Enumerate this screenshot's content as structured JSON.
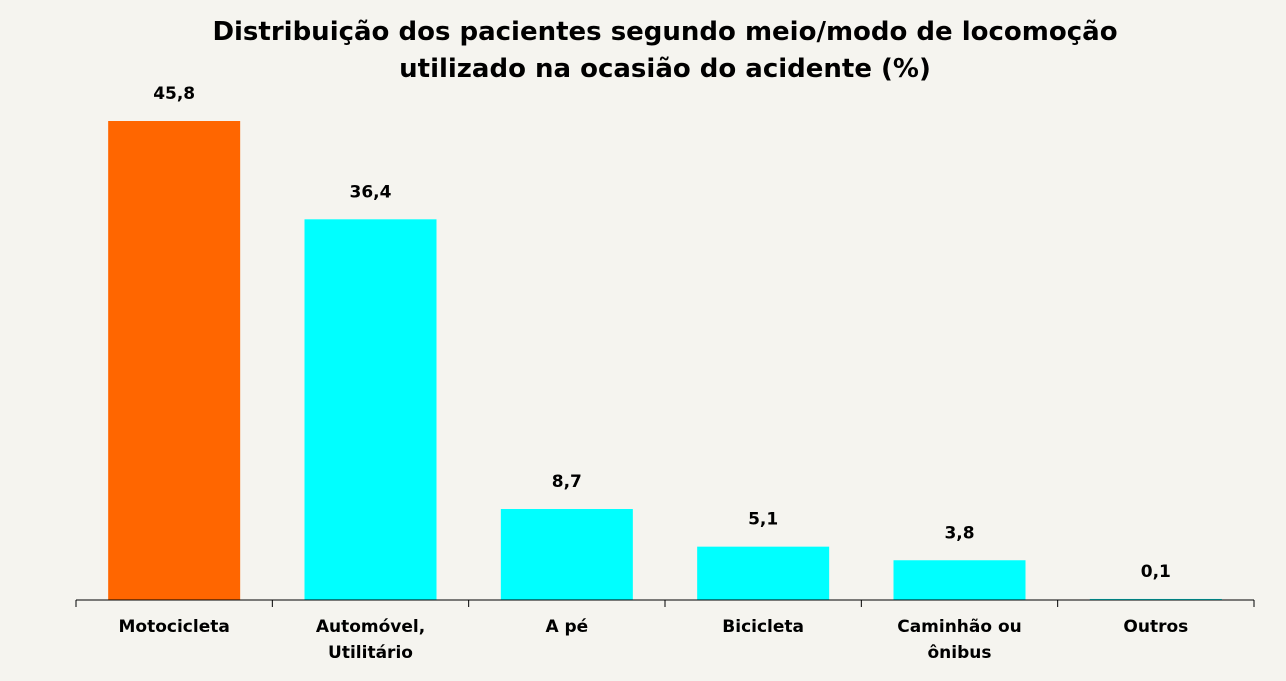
{
  "chart_data": {
    "type": "bar",
    "title": "Distribuição dos pacientes segundo meio/modo de locomoção utilizado na ocasião do acidente (%)",
    "categories": [
      "Motocicleta",
      "Automóvel, Utilitário",
      "A pé",
      "Bicicleta",
      "Caminhão ou ônibus",
      "Outros"
    ],
    "values": [
      45.8,
      36.4,
      8.7,
      5.1,
      3.8,
      0.1
    ],
    "value_labels": [
      "45,8",
      "36,4",
      "8,7",
      "5,1",
      "3,8",
      "0,1"
    ],
    "colors": [
      "#ff6600",
      "#00ffff",
      "#00ffff",
      "#00ffff",
      "#00ffff",
      "#00ffff"
    ]
  }
}
